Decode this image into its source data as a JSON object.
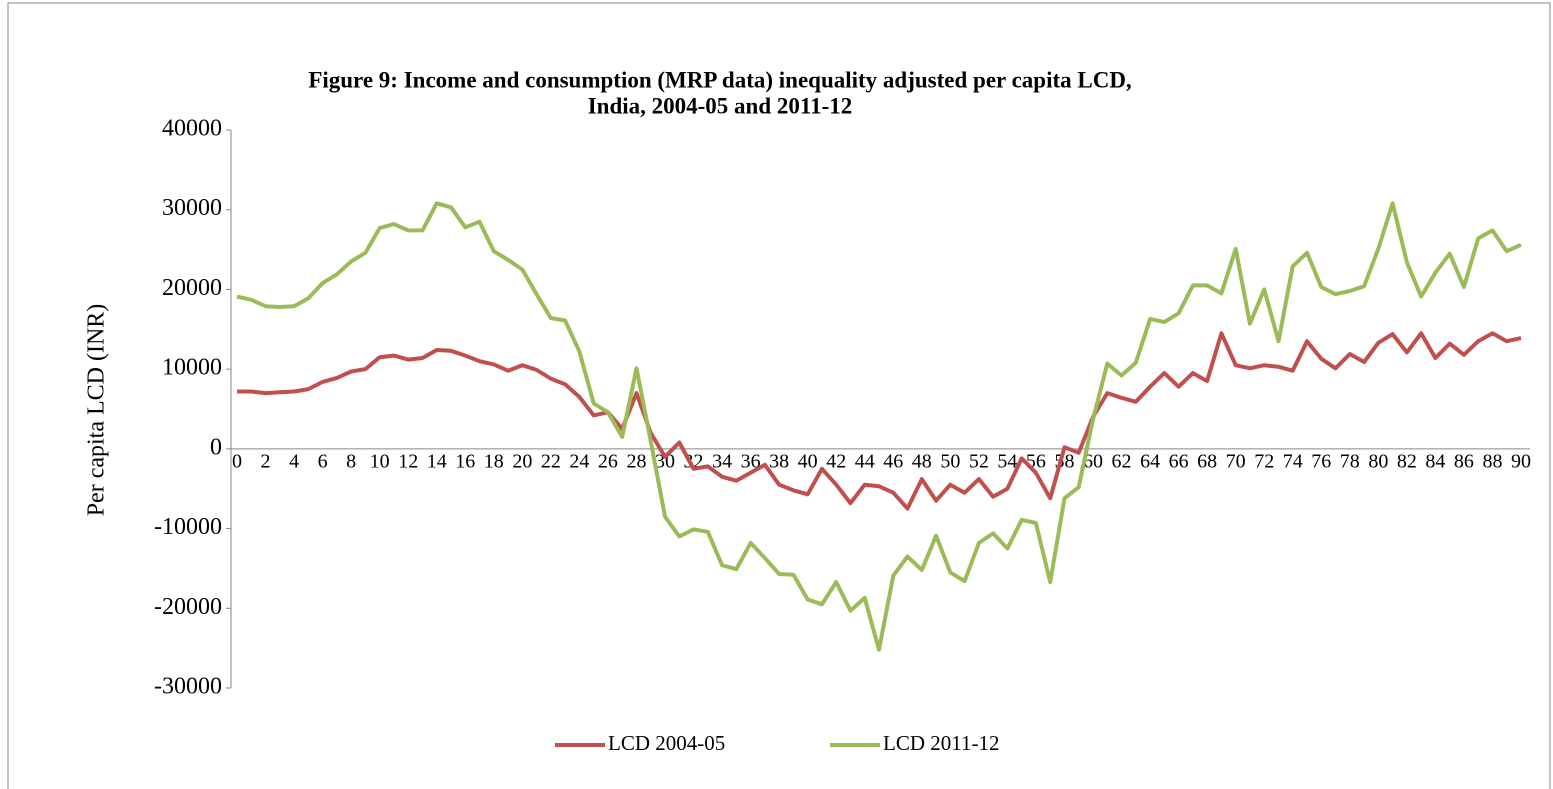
{
  "chart_data": {
    "type": "line",
    "title": "Figure 9:  Income and consumption (MRP data) inequality adjusted per capita LCD,",
    "subtitle": "India, 2004-05 and 2011-12",
    "y_label": "Per capita LCD (INR)",
    "x": [
      0,
      1,
      2,
      3,
      4,
      5,
      6,
      7,
      8,
      9,
      10,
      11,
      12,
      13,
      14,
      15,
      16,
      17,
      18,
      19,
      20,
      21,
      22,
      23,
      24,
      25,
      26,
      27,
      28,
      29,
      30,
      31,
      32,
      33,
      34,
      35,
      36,
      37,
      38,
      39,
      40,
      41,
      42,
      43,
      44,
      45,
      46,
      47,
      48,
      49,
      50,
      51,
      52,
      53,
      54,
      55,
      56,
      57,
      58,
      59,
      60,
      61,
      62,
      63,
      64,
      65,
      66,
      67,
      68,
      69,
      70,
      71,
      72,
      73,
      74,
      75,
      76,
      77,
      78,
      79,
      80,
      81,
      82,
      83,
      84,
      85,
      86,
      87,
      88,
      89,
      90
    ],
    "xlim": [
      0,
      90
    ],
    "xticks": [
      0,
      2,
      4,
      6,
      8,
      10,
      12,
      14,
      16,
      18,
      20,
      22,
      24,
      26,
      28,
      30,
      32,
      34,
      36,
      38,
      40,
      42,
      44,
      46,
      48,
      50,
      52,
      54,
      56,
      58,
      60,
      62,
      64,
      66,
      68,
      70,
      72,
      74,
      76,
      78,
      80,
      82,
      84,
      86,
      88,
      90
    ],
    "ylim": [
      -30000,
      40000
    ],
    "yticks": [
      -30000,
      -20000,
      -10000,
      0,
      10000,
      20000,
      30000,
      40000
    ],
    "legend": "bottom",
    "series": [
      {
        "name": "LCD 2004-05",
        "color": "#c0504d",
        "values": [
          7200,
          7200,
          7000,
          7100,
          7200,
          7500,
          8400,
          8900,
          9700,
          10000,
          11500,
          11700,
          11200,
          11400,
          12400,
          12300,
          11700,
          11000,
          10600,
          9800,
          10500,
          9900,
          8800,
          8100,
          6500,
          4200,
          4600,
          2500,
          7000,
          2000,
          -1000,
          800,
          -2500,
          -2200,
          -3500,
          -4000,
          -3000,
          -2000,
          -4500,
          -5200,
          -5700,
          -2500,
          -4500,
          -6800,
          -4500,
          -4700,
          -5500,
          -7500,
          -3800,
          -6500,
          -4500,
          -5500,
          -3800,
          -6000,
          -5000,
          -1200,
          -3000,
          -6200,
          200,
          -500,
          4000,
          7000,
          6400,
          5900,
          7800,
          9500,
          7800,
          9500,
          8500,
          14500,
          10500,
          10100,
          10500,
          10300,
          9800,
          13500,
          11300,
          10100,
          11900,
          10900,
          13300,
          14400,
          12100,
          14500,
          11400,
          13200,
          11800,
          13500,
          14500,
          13500,
          13900
        ]
      },
      {
        "name": "LCD 2011-12",
        "color": "#9bbb59",
        "values": [
          19100,
          18700,
          17900,
          17800,
          17900,
          18900,
          20800,
          21900,
          23500,
          24600,
          27700,
          28200,
          27400,
          27400,
          30800,
          30300,
          27800,
          28500,
          24800,
          23700,
          22500,
          19400,
          16400,
          16100,
          12200,
          5700,
          4600,
          1500,
          10100,
          1000,
          -8500,
          -11000,
          -10100,
          -10400,
          -14600,
          -15100,
          -11800,
          -13700,
          -15700,
          -15800,
          -18900,
          -19500,
          -16700,
          -20300,
          -18700,
          -25200,
          -15900,
          -13500,
          -15200,
          -10900,
          -15500,
          -16600,
          -11800,
          -10600,
          -12500,
          -8900,
          -9300,
          -16700,
          -6200,
          -4800,
          3700,
          10700,
          9200,
          10800,
          16300,
          15900,
          17000,
          20500,
          20500,
          19500,
          25100,
          15700,
          20000,
          13500,
          22900,
          24600,
          20300,
          19400,
          19800,
          20400,
          25100,
          30800,
          23400,
          19100,
          22100,
          24500,
          20300,
          26400,
          27400,
          24800,
          25600
        ]
      }
    ]
  }
}
